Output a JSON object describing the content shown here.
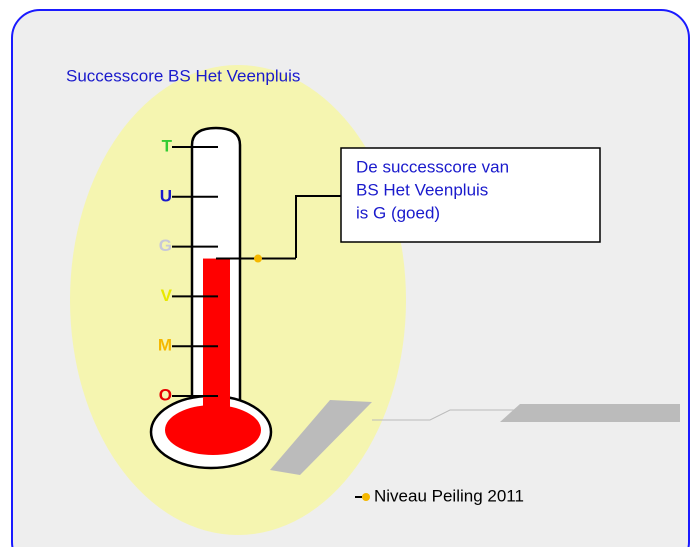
{
  "chart_data": {
    "type": "thermometer",
    "title": "Successcore BS Het Veenpluis",
    "ylim": [
      1,
      6
    ],
    "yticks": [
      {
        "value": 1,
        "label": "O"
      },
      {
        "value": 2,
        "label": "M"
      },
      {
        "value": 3,
        "label": "V"
      },
      {
        "value": 4,
        "label": "G"
      },
      {
        "value": 5,
        "label": "U"
      },
      {
        "value": 6,
        "label": "T"
      }
    ],
    "tick_colors": [
      "#e60000",
      "#f5b800",
      "#e8e800",
      "#c8c8d8",
      "#1a1acc",
      "#33cc33"
    ],
    "fill_color": "#ff0000",
    "series": [
      {
        "name": "Niveau Peiling 2011",
        "color": "#f5b800",
        "values": [
          3.76
        ]
      }
    ],
    "annotation": [
      "De successcore van",
      "BS Het Veenpluis",
      "is G (goed)"
    ]
  }
}
